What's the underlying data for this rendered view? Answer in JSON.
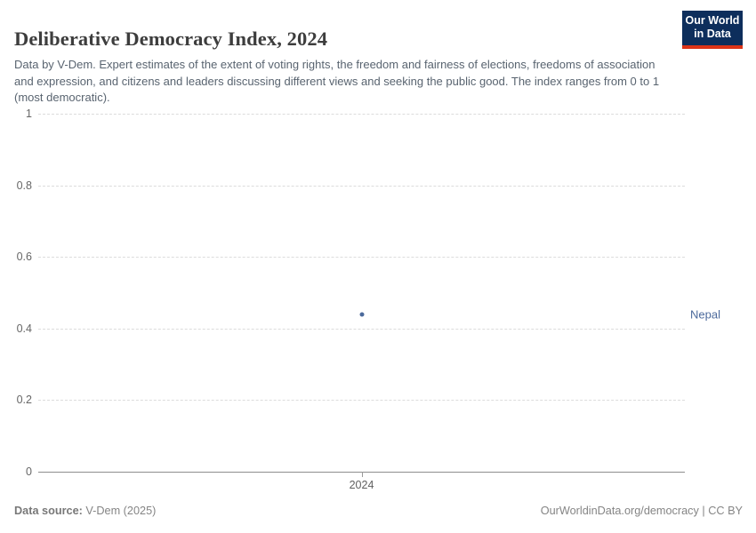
{
  "header": {
    "title": "Deliberative Democracy Index, 2024",
    "subtitle": "Data by V-Dem. Expert estimates of the extent of voting rights, the freedom and fairness of elections, freedoms of association and expression, and citizens and leaders discussing different views and seeking the public good. The index ranges from 0 to 1 (most democratic).",
    "logo": {
      "line1": "Our World",
      "line2": "in Data",
      "bg_color": "#0d2e5c",
      "accent_color": "#dc3418"
    }
  },
  "chart_data": {
    "type": "scatter",
    "title": "Deliberative Democracy Index, 2024",
    "x": [
      2024
    ],
    "series": [
      {
        "name": "Nepal",
        "values": [
          0.44
        ],
        "color": "#4c6a9c",
        "label_color": "#4c6a9c"
      }
    ],
    "xlabel": "",
    "ylabel": "",
    "ylim": [
      0,
      1
    ],
    "y_ticks": [
      0,
      0.2,
      0.4,
      0.6,
      0.8,
      1
    ],
    "y_tick_labels": [
      "0",
      "0.2",
      "0.4",
      "0.6",
      "0.8",
      "1"
    ],
    "x_ticks": [
      2024
    ],
    "x_tick_labels": [
      "2024"
    ],
    "grid": "horizontal-dashed",
    "legend_position": "right-of-plot-entity-label"
  },
  "footer": {
    "source_label": "Data source:",
    "source_value": " V-Dem (2025)",
    "rights": "OurWorldinData.org/democracy | CC BY"
  }
}
